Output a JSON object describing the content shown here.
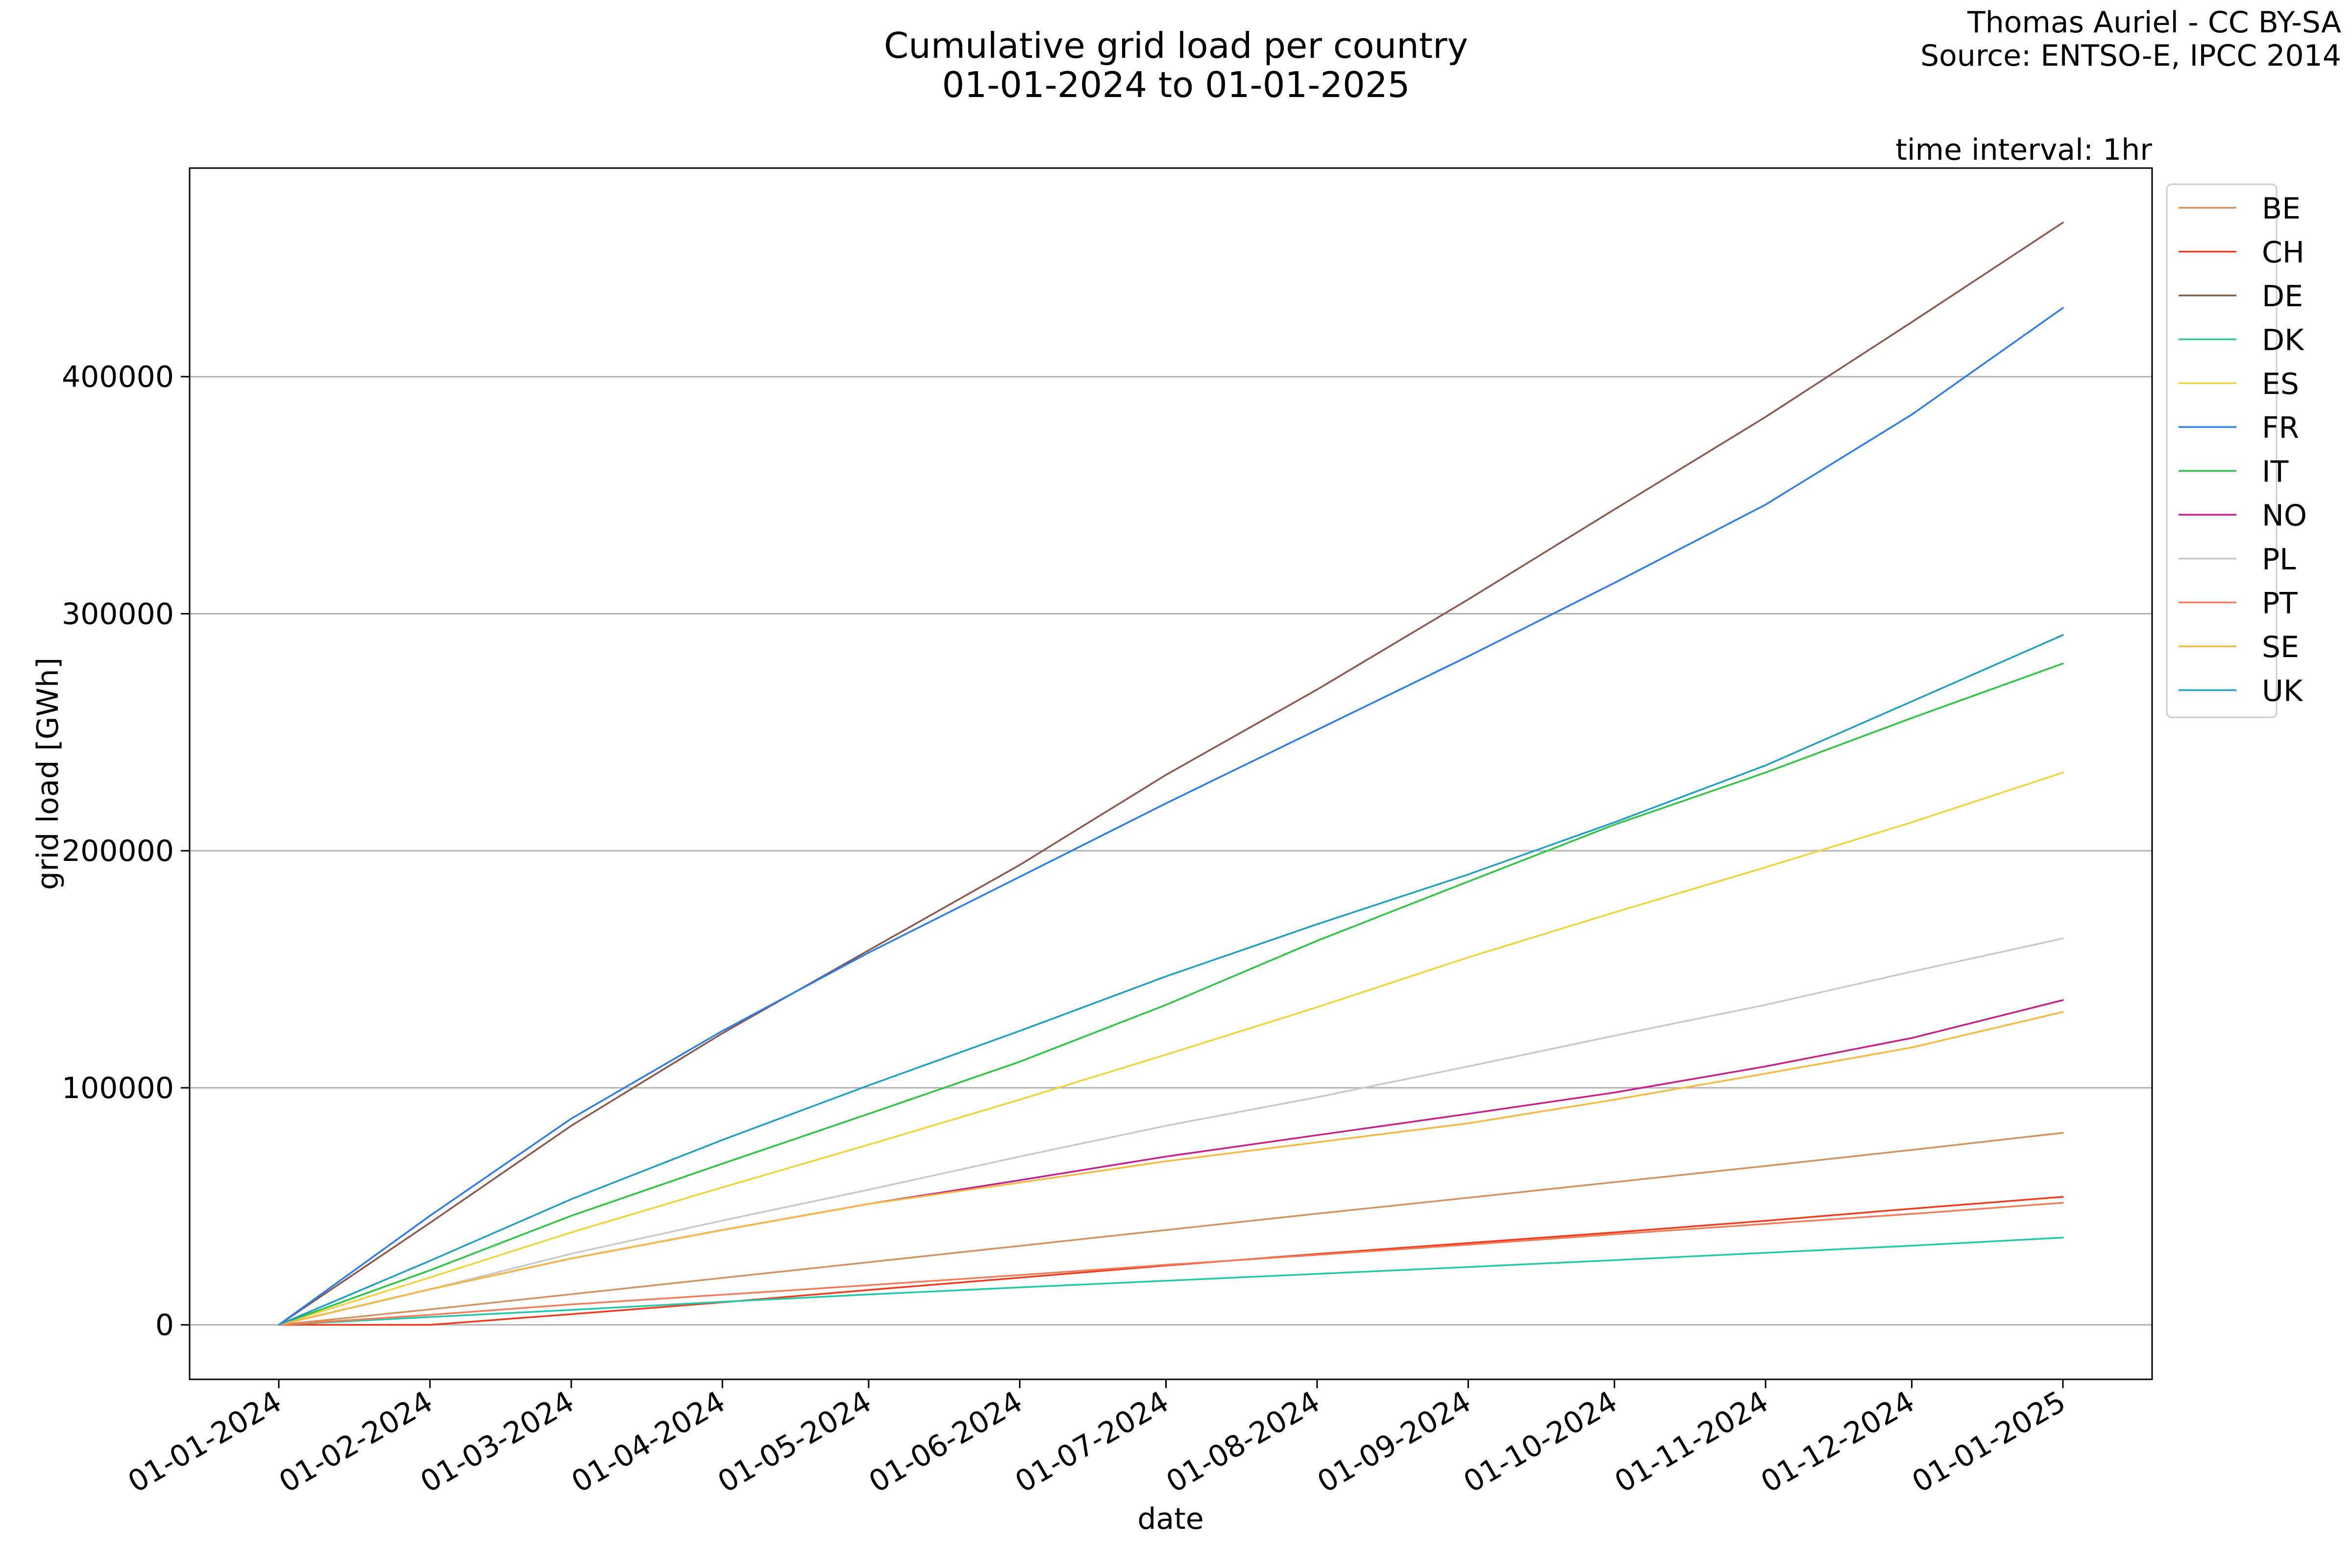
{
  "header": {
    "title_line1": "Cumulative grid load per country",
    "title_line2": "01-01-2024 to 01-01-2025",
    "credit_line1": "Thomas Auriel - CC BY-SA",
    "credit_line2": "Source: ENTSO-E, IPCC 2014"
  },
  "chart_data": {
    "type": "line",
    "title": "Cumulative grid load per country\n01-01-2024 to 01-01-2025",
    "annotation": "time interval: 1hr",
    "xlabel": "date",
    "ylabel": "grid load [GWh]",
    "x": [
      "01-01-2024",
      "01-02-2024",
      "01-03-2024",
      "01-04-2024",
      "01-05-2024",
      "01-06-2024",
      "01-07-2024",
      "01-08-2024",
      "01-09-2024",
      "01-10-2024",
      "01-11-2024",
      "01-12-2024",
      "01-01-2025"
    ],
    "x_tick_labels": [
      "01-01-2024",
      "01-02-2024",
      "01-03-2024",
      "01-04-2024",
      "01-05-2024",
      "01-06-2024",
      "01-07-2024",
      "01-08-2024",
      "01-09-2024",
      "01-10-2024",
      "01-11-2024",
      "01-12-2024",
      "01-01-2025"
    ],
    "y_ticks": [
      0,
      100000,
      200000,
      300000,
      400000
    ],
    "y_tick_labels": [
      "0",
      "100000",
      "200000",
      "300000",
      "400000"
    ],
    "ylim": [
      -23000,
      488000
    ],
    "grid": "horizontal",
    "legend_position": "outside-right",
    "series": [
      {
        "name": "BE",
        "color": "#d2935f",
        "values": [
          0,
          6500,
          12900,
          19800,
          26400,
          33300,
          40000,
          46900,
          53600,
          60200,
          67000,
          73800,
          81000
        ]
      },
      {
        "name": "CH",
        "color": "#f03c1e",
        "values": [
          0,
          0,
          4500,
          9500,
          14700,
          19900,
          25000,
          29900,
          34500,
          39000,
          43900,
          49000,
          54000
        ]
      },
      {
        "name": "DE",
        "color": "#8c564b",
        "values": [
          0,
          43000,
          84000,
          123000,
          158000,
          194000,
          232000,
          268000,
          306000,
          344000,
          383000,
          423000,
          465000
        ]
      },
      {
        "name": "DK",
        "color": "#22c8a8",
        "values": [
          0,
          3300,
          6300,
          9700,
          12800,
          15800,
          18600,
          21500,
          24400,
          27300,
          30400,
          33400,
          36800
        ]
      },
      {
        "name": "ES",
        "color": "#f2d23a",
        "values": [
          0,
          20000,
          39000,
          58000,
          76000,
          95000,
          114000,
          134000,
          155000,
          174000,
          193000,
          212000,
          233000
        ]
      },
      {
        "name": "FR",
        "color": "#2b7bed",
        "values": [
          0,
          46000,
          87000,
          124000,
          157000,
          189000,
          220000,
          251000,
          282000,
          313000,
          346000,
          384000,
          429000
        ]
      },
      {
        "name": "IT",
        "color": "#2dc53f",
        "values": [
          0,
          23000,
          46000,
          68000,
          89000,
          111000,
          135000,
          162000,
          187000,
          211000,
          233000,
          256000,
          279000
        ]
      },
      {
        "name": "NO",
        "color": "#c8208a",
        "values": [
          0,
          15000,
          28000,
          40000,
          51000,
          61000,
          71000,
          80000,
          89000,
          98000,
          109000,
          121000,
          137000
        ]
      },
      {
        "name": "PL",
        "color": "#c8c8c8",
        "values": [
          0,
          15000,
          30000,
          44000,
          57000,
          71000,
          84000,
          96000,
          109000,
          122000,
          135000,
          149000,
          163000
        ]
      },
      {
        "name": "PT",
        "color": "#f07d5a",
        "values": [
          0,
          4200,
          8600,
          12700,
          16700,
          21000,
          25300,
          29500,
          33800,
          38200,
          42600,
          46800,
          51500
        ]
      },
      {
        "name": "SE",
        "color": "#f5b840",
        "values": [
          0,
          15000,
          28000,
          40000,
          51000,
          60000,
          69000,
          77000,
          85000,
          95000,
          106000,
          117000,
          132000
        ]
      },
      {
        "name": "UK",
        "color": "#1f9fc8",
        "values": [
          0,
          27000,
          53000,
          78000,
          101000,
          124000,
          147000,
          169000,
          190000,
          212000,
          236000,
          263000,
          291000
        ]
      }
    ]
  }
}
